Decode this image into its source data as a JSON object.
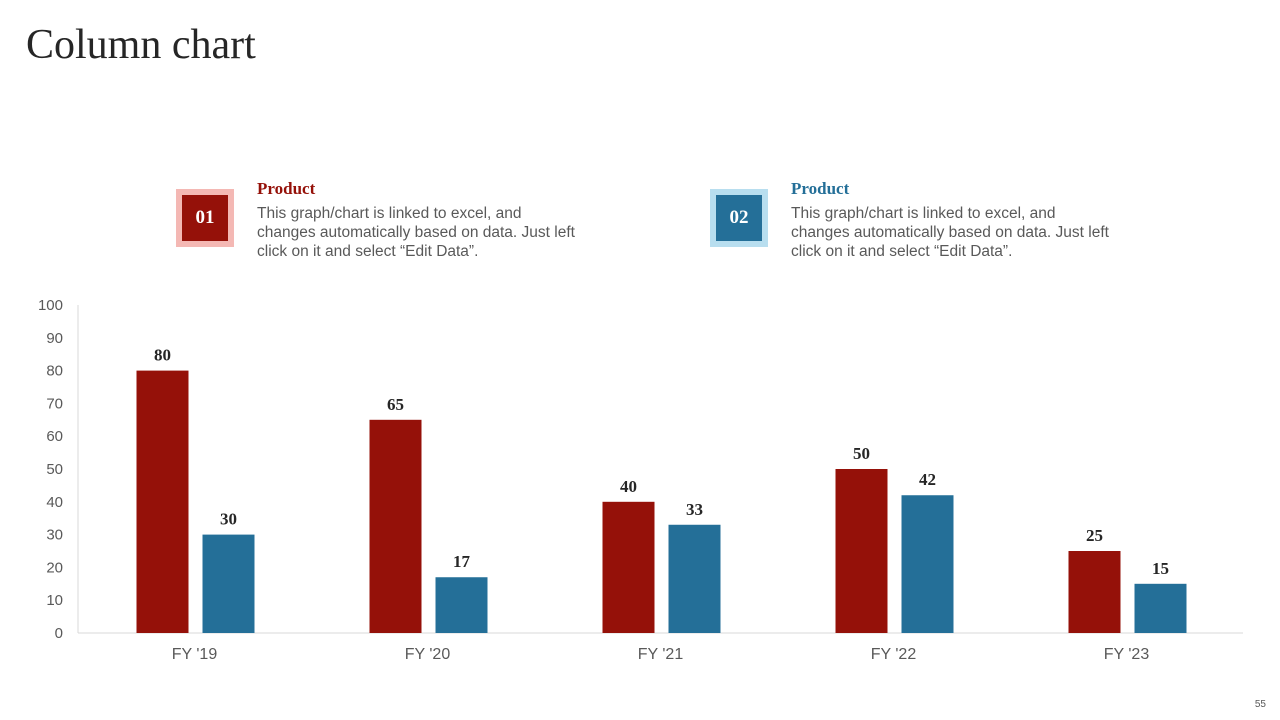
{
  "page": {
    "title": "Column chart",
    "page_number": "55"
  },
  "legend": [
    {
      "number": "01",
      "heading": "Product",
      "text": "This graph/chart is linked to excel, and changes automatically based on data. Just left click on it and select “Edit Data”.",
      "color": "#951109",
      "border_color": "#f4b8b4"
    },
    {
      "number": "02",
      "heading": "Product",
      "text": "This graph/chart is linked to excel, and changes automatically based on data. Just left click on it and select “Edit Data”.",
      "color": "#246f98",
      "border_color": "#b8deef"
    }
  ],
  "chart_data": {
    "type": "bar",
    "title": "Column chart",
    "categories": [
      "FY '19",
      "FY '20",
      "FY '21",
      "FY '22",
      "FY '23"
    ],
    "series": [
      {
        "name": "Product 01",
        "color": "#951109",
        "values": [
          80,
          65,
          40,
          50,
          25
        ]
      },
      {
        "name": "Product 02",
        "color": "#246f98",
        "values": [
          30,
          17,
          33,
          42,
          15
        ]
      }
    ],
    "ylim": [
      0,
      100
    ],
    "yticks": [
      0,
      10,
      20,
      30,
      40,
      50,
      60,
      70,
      80,
      90,
      100
    ],
    "xlabel": "",
    "ylabel": "",
    "grid": false,
    "data_labels": true
  }
}
